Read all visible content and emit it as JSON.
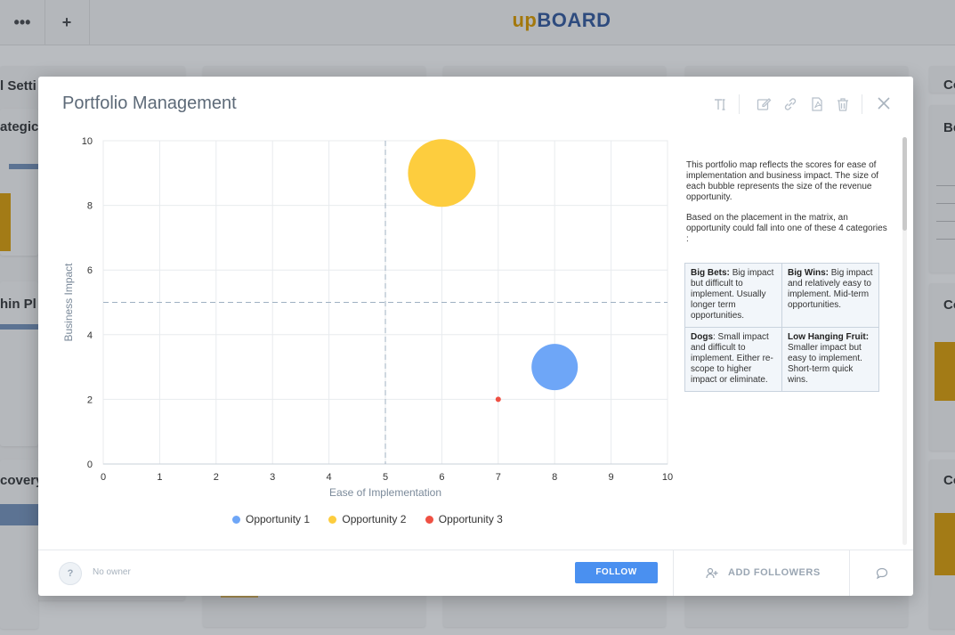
{
  "app": {
    "logo_up": "up",
    "logo_board": "BOARD",
    "menu_icon": "ellipsis-icon",
    "add_icon": "plus-icon",
    "menu_glyph": "•••",
    "add_glyph": "+"
  },
  "background_cards": {
    "titles": [
      "l Setti",
      "ategic O",
      "hin Pl",
      "covery",
      "Be",
      "Co",
      "Co",
      "Co"
    ]
  },
  "modal": {
    "title": "Portfolio Management",
    "toolbar": [
      "text-size-icon",
      "edit-icon",
      "link-icon",
      "pdf-icon",
      "trash-icon",
      "close-icon"
    ]
  },
  "chart_data": {
    "type": "scatter",
    "title": "",
    "xlabel": "Ease of Implementation",
    "ylabel": "Business Impact",
    "xlim": [
      0,
      10
    ],
    "ylim": [
      0,
      10
    ],
    "xticks": [
      "0",
      "1",
      "2",
      "3",
      "4",
      "5",
      "6",
      "7",
      "8",
      "9",
      "10"
    ],
    "yticks": [
      "0",
      "2",
      "4",
      "6",
      "8",
      "10"
    ],
    "grid": true,
    "reference_lines": {
      "x": 5,
      "y": 5
    },
    "legend": "bottom",
    "series": [
      {
        "name": "Opportunity 1",
        "color": "#6ea6f7",
        "points": [
          {
            "x": 8,
            "y": 3,
            "r": 26
          }
        ]
      },
      {
        "name": "Opportunity 2",
        "color": "#fdcd3e",
        "points": [
          {
            "x": 6,
            "y": 9,
            "r": 38
          }
        ]
      },
      {
        "name": "Opportunity 3",
        "color": "#ef5043",
        "points": [
          {
            "x": 7,
            "y": 2,
            "r": 3
          }
        ]
      }
    ]
  },
  "description": {
    "p1": "This portfolio map reflects the scores for ease of implementation and business impact. The size of each bubble represents the size of the revenue opportunity.",
    "p2": "Based on the placement in the matrix, an opportunity could fall into one of these 4 categories :"
  },
  "categories": [
    {
      "name": "Big Bets:",
      "text": "Big impact but difficult to implement. Usually longer term opportunities."
    },
    {
      "name": "Big Wins:",
      "text": "Big impact and relatively easy to implement. Mid-term opportunities."
    },
    {
      "name": "Dogs",
      "text": ": Small impact and difficult to implement. Either re-scope to higher impact or eliminate."
    },
    {
      "name": "Low Hanging Fruit:",
      "text": "Smaller impact but easy to implement. Short-term quick wins."
    }
  ],
  "footer": {
    "owner_avatar": "?",
    "owner_text": "No owner",
    "follow_label": "FOLLOW",
    "add_followers_label": "ADD FOLLOWERS",
    "chat_icon": "comment-icon"
  }
}
